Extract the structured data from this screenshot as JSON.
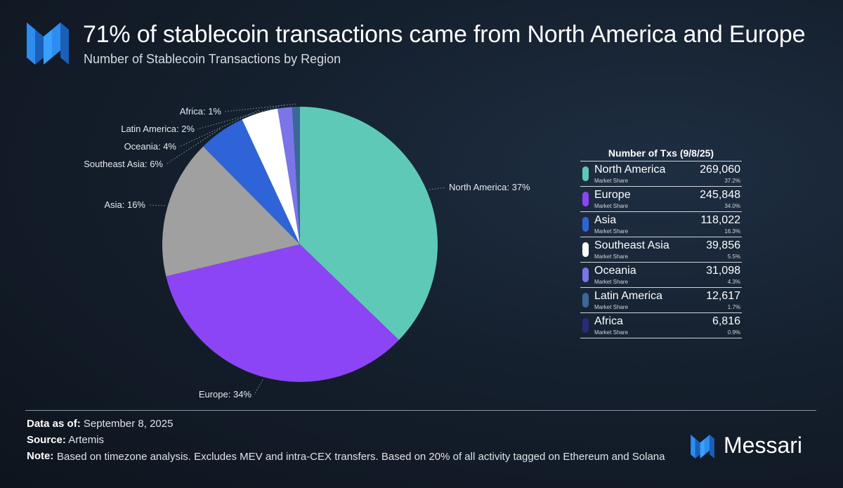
{
  "header": {
    "title": "71% of stablecoin transactions came from North America and Europe",
    "subtitle": "Number of Stablecoin Transactions by Region",
    "logo_icon": "messari-logo-icon"
  },
  "colors": {
    "north_america": "#5fc9b8",
    "europe": "#8b45f5",
    "asia": "#a0a0a0",
    "southeast_asia": "#2f64d8",
    "oceania": "#ffffff",
    "latin_america": "#7a75e8",
    "africa": "#3a6898",
    "accent": "#2d8cf0"
  },
  "chart_data": {
    "type": "pie",
    "title": "Number of Stablecoin Transactions by Region",
    "slices": [
      {
        "label": "North America: 37%",
        "value": 37.2,
        "color": "#5fc9b8"
      },
      {
        "label": "Europe: 34%",
        "value": 34.0,
        "color": "#8b45f5"
      },
      {
        "label": "Asia: 16%",
        "value": 16.3,
        "color": "#a0a0a0"
      },
      {
        "label": "Southeast Asia: 6%",
        "value": 5.5,
        "color": "#2f64d8"
      },
      {
        "label": "Oceania: 4%",
        "value": 4.3,
        "color": "#ffffff"
      },
      {
        "label": "Latin America: 2%",
        "value": 1.7,
        "color": "#7a75e8"
      },
      {
        "label": "Africa: 1%",
        "value": 0.9,
        "color": "#3a6898"
      }
    ]
  },
  "legend": {
    "header": "Number of Txs (9/8/25)",
    "sublabel": "Market Share",
    "rows": [
      {
        "name": "North America",
        "value": "269,060",
        "pct": "37.2%",
        "color": "#5fc9b8"
      },
      {
        "name": "Europe",
        "value": "245,848",
        "pct": "34.0%",
        "color": "#8b45f5"
      },
      {
        "name": "Asia",
        "value": "118,022",
        "pct": "16.3%",
        "color": "#2f64d8"
      },
      {
        "name": "Southeast Asia",
        "value": "39,856",
        "pct": "5.5%",
        "color": "#ffffff"
      },
      {
        "name": "Oceania",
        "value": "31,098",
        "pct": "4.3%",
        "color": "#7a75e8"
      },
      {
        "name": "Latin America",
        "value": "12,617",
        "pct": "1.7%",
        "color": "#3a6898"
      },
      {
        "name": "Africa",
        "value": "6,816",
        "pct": "0.9%",
        "color": "#2b2a7a"
      }
    ]
  },
  "footer": {
    "data_as_of_label": "Data as of:",
    "data_as_of": "September 8, 2025",
    "source_label": "Source:",
    "source": "Artemis",
    "note_label": "Note:",
    "note": "Based on timezone analysis. Excludes MEV and intra-CEX transfers. Based on 20% of all activity tagged on Ethereum and Solana",
    "brand": "Messari",
    "brand_icon": "messari-logo-icon"
  }
}
